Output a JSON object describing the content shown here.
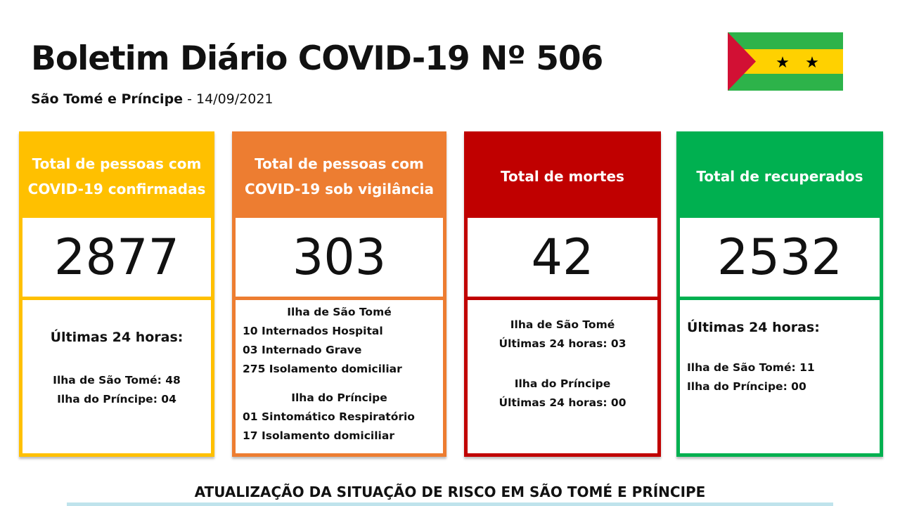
{
  "title": "Boletim Diário COVID-19 Nº 506",
  "subtitle": {
    "country": "São Tomé e Príncipe",
    "date": "- 14/09/2021"
  },
  "colors": {
    "confirmed": "#FFC000",
    "surveillance": "#ED7D31",
    "deaths": "#C00000",
    "recovered": "#00B050"
  },
  "cards": [
    {
      "header": "Total de pessoas com COVID-19 confirmadas",
      "value": "2877",
      "heading": "Últimas 24 horas:",
      "lines": [
        "Ilha de São Tomé: 48",
        "Ilha do Príncipe: 04"
      ]
    },
    {
      "header": "Total de pessoas com COVID-19 sob vigilância",
      "value": "303",
      "lines": [
        "Ilha de São Tomé",
        "10 Internados Hospital",
        "03 Internado Grave",
        "275 Isolamento domiciliar",
        "Ilha do Príncipe",
        "01 Sintomático Respiratório",
        "17 Isolamento domiciliar"
      ]
    },
    {
      "header": "Total de mortes",
      "value": "42",
      "lines": [
        "Ilha de São Tomé",
        "Últimas 24 horas: 03",
        "Ilha do Príncipe",
        "Últimas 24 horas: 00"
      ]
    },
    {
      "header": "Total de recuperados",
      "value": "2532",
      "heading": "Últimas 24 horas:",
      "lines": [
        "Ilha de São Tomé: 11",
        "Ilha do Príncipe: 00"
      ]
    }
  ],
  "section_title": "ATUALIZAÇÃO DA SITUAÇÃO DE RISCO EM SÃO TOMÉ E PRÍNCIPE"
}
